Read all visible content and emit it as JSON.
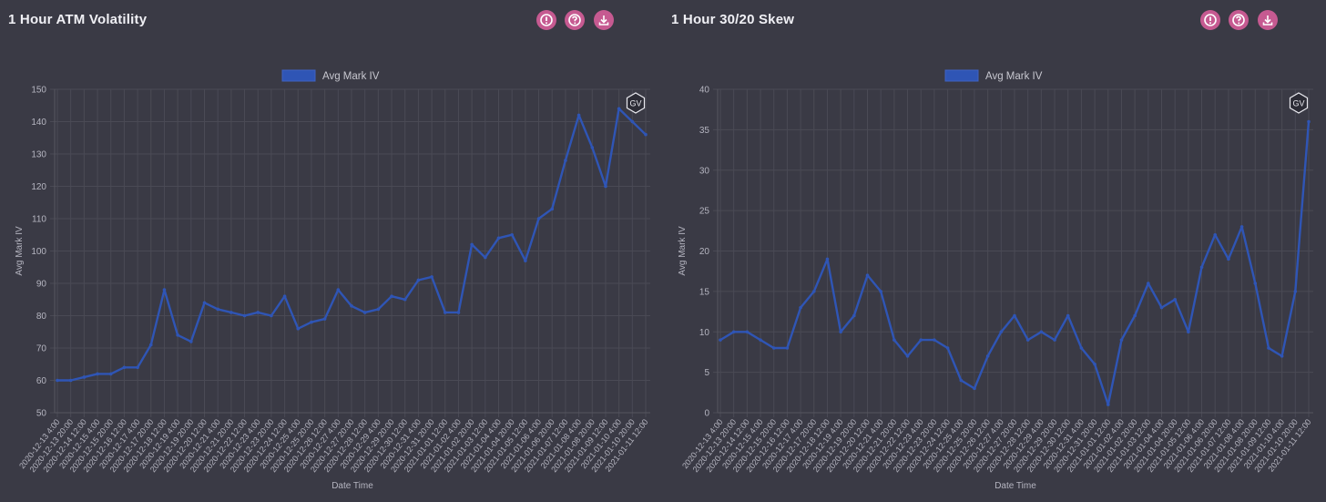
{
  "panels": [
    {
      "title": "1 Hour ATM Volatility",
      "icons": [
        "info-icon",
        "help-icon",
        "download-icon"
      ],
      "watermark": "GV"
    },
    {
      "title": "1 Hour 30/20 Skew",
      "icons": [
        "info-icon",
        "help-icon",
        "download-icon"
      ],
      "watermark": "GV"
    }
  ],
  "colors": {
    "background": "#3a3a45",
    "series": "#2f55b5",
    "grid": "#4a4a55",
    "icon_bg": "#c65a91"
  },
  "chart_data": [
    {
      "type": "line",
      "title": "1 Hour ATM Volatility",
      "xlabel": "Date Time",
      "ylabel": "Avg Mark IV",
      "ylim": [
        50,
        150
      ],
      "yticks": [
        50,
        60,
        70,
        80,
        90,
        100,
        110,
        120,
        130,
        140,
        150
      ],
      "legend": {
        "position": "top-center",
        "entries": [
          "Avg Mark IV"
        ]
      },
      "grid": true,
      "x_tick_labels": [
        "2020-12-13 4:00",
        "2020-12-13 20:00",
        "2020-12-14 12:00",
        "2020-12-15 4:00",
        "2020-12-15 20:00",
        "2020-12-16 12:00",
        "2020-12-17 4:00",
        "2020-12-17 20:00",
        "2020-12-18 12:00",
        "2020-12-19 4:00",
        "2020-12-19 20:00",
        "2020-12-20 12:00",
        "2020-12-21 4:00",
        "2020-12-21 20:00",
        "2020-12-22 12:00",
        "2020-12-23 4:00",
        "2020-12-23 20:00",
        "2020-12-24 12:00",
        "2020-12-25 4:00",
        "2020-12-25 20:00",
        "2020-12-26 12:00",
        "2020-12-27 4:00",
        "2020-12-27 20:00",
        "2020-12-28 12:00",
        "2020-12-29 4:00",
        "2020-12-29 20:00",
        "2020-12-30 12:00",
        "2020-12-31 4:00",
        "2020-12-31 20:00",
        "2021-01-01 12:00",
        "2021-01-02 4:00",
        "2021-01-02 20:00",
        "2021-01-03 12:00",
        "2021-01-04 4:00",
        "2021-01-04 20:00",
        "2021-01-05 12:00",
        "2021-01-06 4:00",
        "2021-01-06 20:00",
        "2021-01-07 12:00",
        "2021-01-08 4:00",
        "2021-01-08 20:00",
        "2021-01-09 12:00",
        "2021-01-10 4:00",
        "2021-01-10 20:00",
        "2021-01-11 12:00"
      ],
      "series": [
        {
          "name": "Avg Mark IV",
          "x": [
            "2020-12-13 4:00",
            "2020-12-13 20:00",
            "2020-12-14 12:00",
            "2020-12-15 4:00",
            "2020-12-15 20:00",
            "2020-12-16 12:00",
            "2020-12-17 4:00",
            "2020-12-17 20:00",
            "2020-12-18 12:00",
            "2020-12-19 4:00",
            "2020-12-19 20:00",
            "2020-12-20 12:00",
            "2020-12-21 4:00",
            "2020-12-21 20:00",
            "2020-12-22 12:00",
            "2020-12-23 4:00",
            "2020-12-23 20:00",
            "2020-12-24 12:00",
            "2020-12-25 4:00",
            "2020-12-25 20:00",
            "2020-12-26 12:00",
            "2020-12-27 4:00",
            "2020-12-27 20:00",
            "2020-12-28 12:00",
            "2020-12-29 4:00",
            "2020-12-29 20:00",
            "2020-12-30 12:00",
            "2020-12-31 4:00",
            "2020-12-31 20:00",
            "2021-01-01 12:00",
            "2021-01-02 4:00",
            "2021-01-02 20:00",
            "2021-01-03 12:00",
            "2021-01-04 4:00",
            "2021-01-04 20:00",
            "2021-01-05 12:00",
            "2021-01-06 4:00",
            "2021-01-06 20:00",
            "2021-01-07 12:00",
            "2021-01-08 4:00",
            "2021-01-08 20:00",
            "2021-01-09 12:00",
            "2021-01-10 4:00",
            "2021-01-10 20:00",
            "2021-01-11 12:00"
          ],
          "values": [
            60,
            60,
            61,
            62,
            62,
            64,
            64,
            71,
            88,
            74,
            72,
            84,
            82,
            81,
            80,
            81,
            80,
            86,
            76,
            78,
            79,
            88,
            83,
            81,
            82,
            86,
            85,
            91,
            92,
            81,
            81,
            102,
            98,
            104,
            105,
            97,
            110,
            113,
            128,
            142,
            132,
            120,
            144,
            140,
            136
          ]
        }
      ]
    },
    {
      "type": "line",
      "title": "1 Hour 30/20 Skew",
      "xlabel": "Date Time",
      "ylabel": "Avg Mark IV",
      "ylim": [
        0,
        40
      ],
      "yticks": [
        0,
        5,
        10,
        15,
        20,
        25,
        30,
        35,
        40
      ],
      "legend": {
        "position": "top-center",
        "entries": [
          "Avg Mark IV"
        ]
      },
      "grid": true,
      "x_tick_labels": [
        "2020-12-13 4:00",
        "2020-12-13 20:00",
        "2020-12-14 12:00",
        "2020-12-15 4:00",
        "2020-12-15 20:00",
        "2020-12-16 12:00",
        "2020-12-17 4:00",
        "2020-12-17 20:00",
        "2020-12-18 12:00",
        "2020-12-19 4:00",
        "2020-12-19 20:00",
        "2020-12-20 12:00",
        "2020-12-21 4:00",
        "2020-12-21 20:00",
        "2020-12-22 12:00",
        "2020-12-23 4:00",
        "2020-12-23 20:00",
        "2020-12-24 12:00",
        "2020-12-25 4:00",
        "2020-12-25 20:00",
        "2020-12-26 12:00",
        "2020-12-27 4:00",
        "2020-12-27 20:00",
        "2020-12-28 12:00",
        "2020-12-29 4:00",
        "2020-12-29 20:00",
        "2020-12-30 12:00",
        "2020-12-31 4:00",
        "2020-12-31 20:00",
        "2021-01-01 12:00",
        "2021-01-02 4:00",
        "2021-01-02 20:00",
        "2021-01-03 12:00",
        "2021-01-04 4:00",
        "2021-01-04 20:00",
        "2021-01-05 12:00",
        "2021-01-06 4:00",
        "2021-01-06 20:00",
        "2021-01-07 12:00",
        "2021-01-08 4:00",
        "2021-01-08 20:00",
        "2021-01-09 12:00",
        "2021-01-10 4:00",
        "2021-01-10 20:00",
        "2021-01-11 12:00"
      ],
      "series": [
        {
          "name": "Avg Mark IV",
          "x": [
            "2020-12-13 4:00",
            "2020-12-13 20:00",
            "2020-12-14 12:00",
            "2020-12-15 4:00",
            "2020-12-15 20:00",
            "2020-12-16 12:00",
            "2020-12-17 4:00",
            "2020-12-17 20:00",
            "2020-12-18 12:00",
            "2020-12-19 4:00",
            "2020-12-19 20:00",
            "2020-12-20 12:00",
            "2020-12-21 4:00",
            "2020-12-21 20:00",
            "2020-12-22 12:00",
            "2020-12-23 4:00",
            "2020-12-23 20:00",
            "2020-12-24 12:00",
            "2020-12-25 4:00",
            "2020-12-25 20:00",
            "2020-12-26 12:00",
            "2020-12-27 4:00",
            "2020-12-27 20:00",
            "2020-12-28 12:00",
            "2020-12-29 4:00",
            "2020-12-29 20:00",
            "2020-12-30 12:00",
            "2020-12-31 4:00",
            "2020-12-31 20:00",
            "2021-01-01 12:00",
            "2021-01-02 4:00",
            "2021-01-02 20:00",
            "2021-01-03 12:00",
            "2021-01-04 4:00",
            "2021-01-04 20:00",
            "2021-01-05 12:00",
            "2021-01-06 4:00",
            "2021-01-06 20:00",
            "2021-01-07 12:00",
            "2021-01-08 4:00",
            "2021-01-08 20:00",
            "2021-01-09 12:00",
            "2021-01-10 4:00",
            "2021-01-10 20:00",
            "2021-01-11 12:00"
          ],
          "values": [
            9,
            10,
            10,
            9,
            8,
            8,
            13,
            15,
            19,
            10,
            12,
            17,
            15,
            9,
            7,
            9,
            9,
            8,
            4,
            3,
            7,
            10,
            12,
            9,
            10,
            9,
            12,
            8,
            6,
            1,
            9,
            12,
            16,
            13,
            14,
            10,
            18,
            22,
            19,
            23,
            16,
            8,
            7,
            15,
            36
          ]
        }
      ]
    }
  ]
}
